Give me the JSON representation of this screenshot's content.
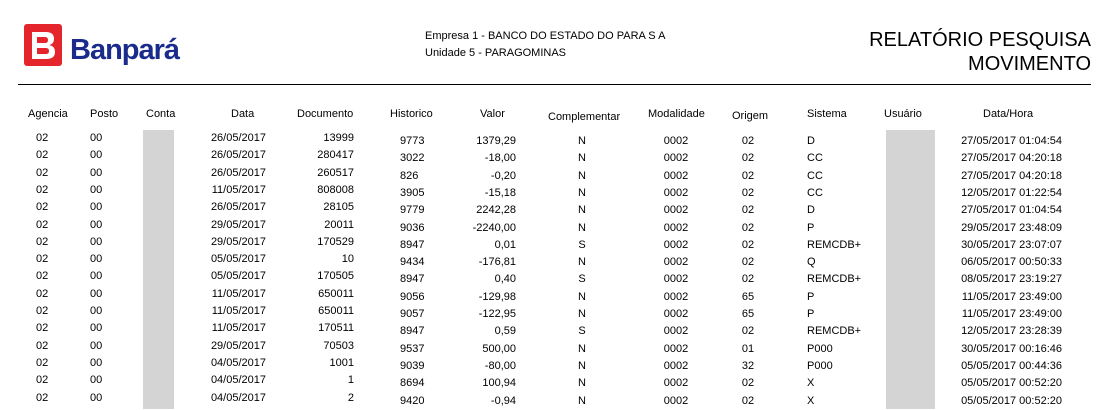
{
  "header": {
    "logo_text": "Banpará",
    "company_line": "Empresa 1 - BANCO DO ESTADO DO PARA S A",
    "unit_line": "Unidade 5 - PARAGOMINAS",
    "title_line1": "RELATÓRIO PESQUISA",
    "title_line2": "MOVIMENTO"
  },
  "columns": {
    "agencia": "Agencia",
    "posto": "Posto",
    "conta": "Conta",
    "data": "Data",
    "documento": "Documento",
    "historico": "Historico",
    "valor": "Valor",
    "complementar": "Complementar",
    "modalidade": "Modalidade",
    "origem": "Origem",
    "sistema": "Sistema",
    "usuario": "Usuário",
    "datahora": "Data/Hora"
  },
  "rows": [
    {
      "agencia": "02",
      "posto": "00",
      "data": "26/05/2017",
      "documento": "13999",
      "historico": "9773",
      "valor": "1379,29",
      "complementar": "N",
      "modalidade": "0002",
      "origem": "02",
      "sistema": "D",
      "datahora": "27/05/2017 01:04:54"
    },
    {
      "agencia": "02",
      "posto": "00",
      "data": "26/05/2017",
      "documento": "280417",
      "historico": "3022",
      "valor": "-18,00",
      "complementar": "N",
      "modalidade": "0002",
      "origem": "02",
      "sistema": "CC",
      "datahora": "27/05/2017 04:20:18"
    },
    {
      "agencia": "02",
      "posto": "00",
      "data": "26/05/2017",
      "documento": "260517",
      "historico": "826",
      "valor": "-0,20",
      "complementar": "N",
      "modalidade": "0002",
      "origem": "02",
      "sistema": "CC",
      "datahora": "27/05/2017 04:20:18"
    },
    {
      "agencia": "02",
      "posto": "00",
      "data": "11/05/2017",
      "documento": "808008",
      "historico": "3905",
      "valor": "-15,18",
      "complementar": "N",
      "modalidade": "0002",
      "origem": "02",
      "sistema": "CC",
      "datahora": "12/05/2017 01:22:54"
    },
    {
      "agencia": "02",
      "posto": "00",
      "data": "26/05/2017",
      "documento": "28105",
      "historico": "9779",
      "valor": "2242,28",
      "complementar": "N",
      "modalidade": "0002",
      "origem": "02",
      "sistema": "D",
      "datahora": "27/05/2017 01:04:54"
    },
    {
      "agencia": "02",
      "posto": "00",
      "data": "29/05/2017",
      "documento": "20011",
      "historico": "9036",
      "valor": "-2240,00",
      "complementar": "N",
      "modalidade": "0002",
      "origem": "02",
      "sistema": "P",
      "datahora": "29/05/2017 23:48:09"
    },
    {
      "agencia": "02",
      "posto": "00",
      "data": "29/05/2017",
      "documento": "170529",
      "historico": "8947",
      "valor": "0,01",
      "complementar": "S",
      "modalidade": "0002",
      "origem": "02",
      "sistema": "REMCDB+",
      "datahora": "30/05/2017 23:07:07"
    },
    {
      "agencia": "02",
      "posto": "00",
      "data": "05/05/2017",
      "documento": "10",
      "historico": "9434",
      "valor": "-176,81",
      "complementar": "N",
      "modalidade": "0002",
      "origem": "02",
      "sistema": "Q",
      "datahora": "06/05/2017 00:50:33"
    },
    {
      "agencia": "02",
      "posto": "00",
      "data": "05/05/2017",
      "documento": "170505",
      "historico": "8947",
      "valor": "0,40",
      "complementar": "S",
      "modalidade": "0002",
      "origem": "02",
      "sistema": "REMCDB+",
      "datahora": "08/05/2017 23:19:27"
    },
    {
      "agencia": "02",
      "posto": "00",
      "data": "11/05/2017",
      "documento": "650011",
      "historico": "9056",
      "valor": "-129,98",
      "complementar": "N",
      "modalidade": "0002",
      "origem": "65",
      "sistema": "P",
      "datahora": "11/05/2017 23:49:00"
    },
    {
      "agencia": "02",
      "posto": "00",
      "data": "11/05/2017",
      "documento": "650011",
      "historico": "9057",
      "valor": "-122,95",
      "complementar": "N",
      "modalidade": "0002",
      "origem": "65",
      "sistema": "P",
      "datahora": "11/05/2017 23:49:00"
    },
    {
      "agencia": "02",
      "posto": "00",
      "data": "11/05/2017",
      "documento": "170511",
      "historico": "8947",
      "valor": "0,59",
      "complementar": "S",
      "modalidade": "0002",
      "origem": "02",
      "sistema": "REMCDB+",
      "datahora": "12/05/2017 23:28:39"
    },
    {
      "agencia": "02",
      "posto": "00",
      "data": "29/05/2017",
      "documento": "70503",
      "historico": "9537",
      "valor": "500,00",
      "complementar": "N",
      "modalidade": "0002",
      "origem": "01",
      "sistema": "P000",
      "datahora": "30/05/2017 00:16:46"
    },
    {
      "agencia": "02",
      "posto": "00",
      "data": "04/05/2017",
      "documento": "1001",
      "historico": "9039",
      "valor": "-80,00",
      "complementar": "N",
      "modalidade": "0002",
      "origem": "32",
      "sistema": "P000",
      "datahora": "05/05/2017 00:44:36"
    },
    {
      "agencia": "02",
      "posto": "00",
      "data": "04/05/2017",
      "documento": "1",
      "historico": "8694",
      "valor": "100,94",
      "complementar": "N",
      "modalidade": "0002",
      "origem": "02",
      "sistema": "X",
      "datahora": "05/05/2017 00:52:20"
    },
    {
      "agencia": "02",
      "posto": "00",
      "data": "04/05/2017",
      "documento": "2",
      "historico": "9420",
      "valor": "-0,94",
      "complementar": "N",
      "modalidade": "0002",
      "origem": "02",
      "sistema": "X",
      "datahora": "05/05/2017 00:52:20"
    }
  ]
}
